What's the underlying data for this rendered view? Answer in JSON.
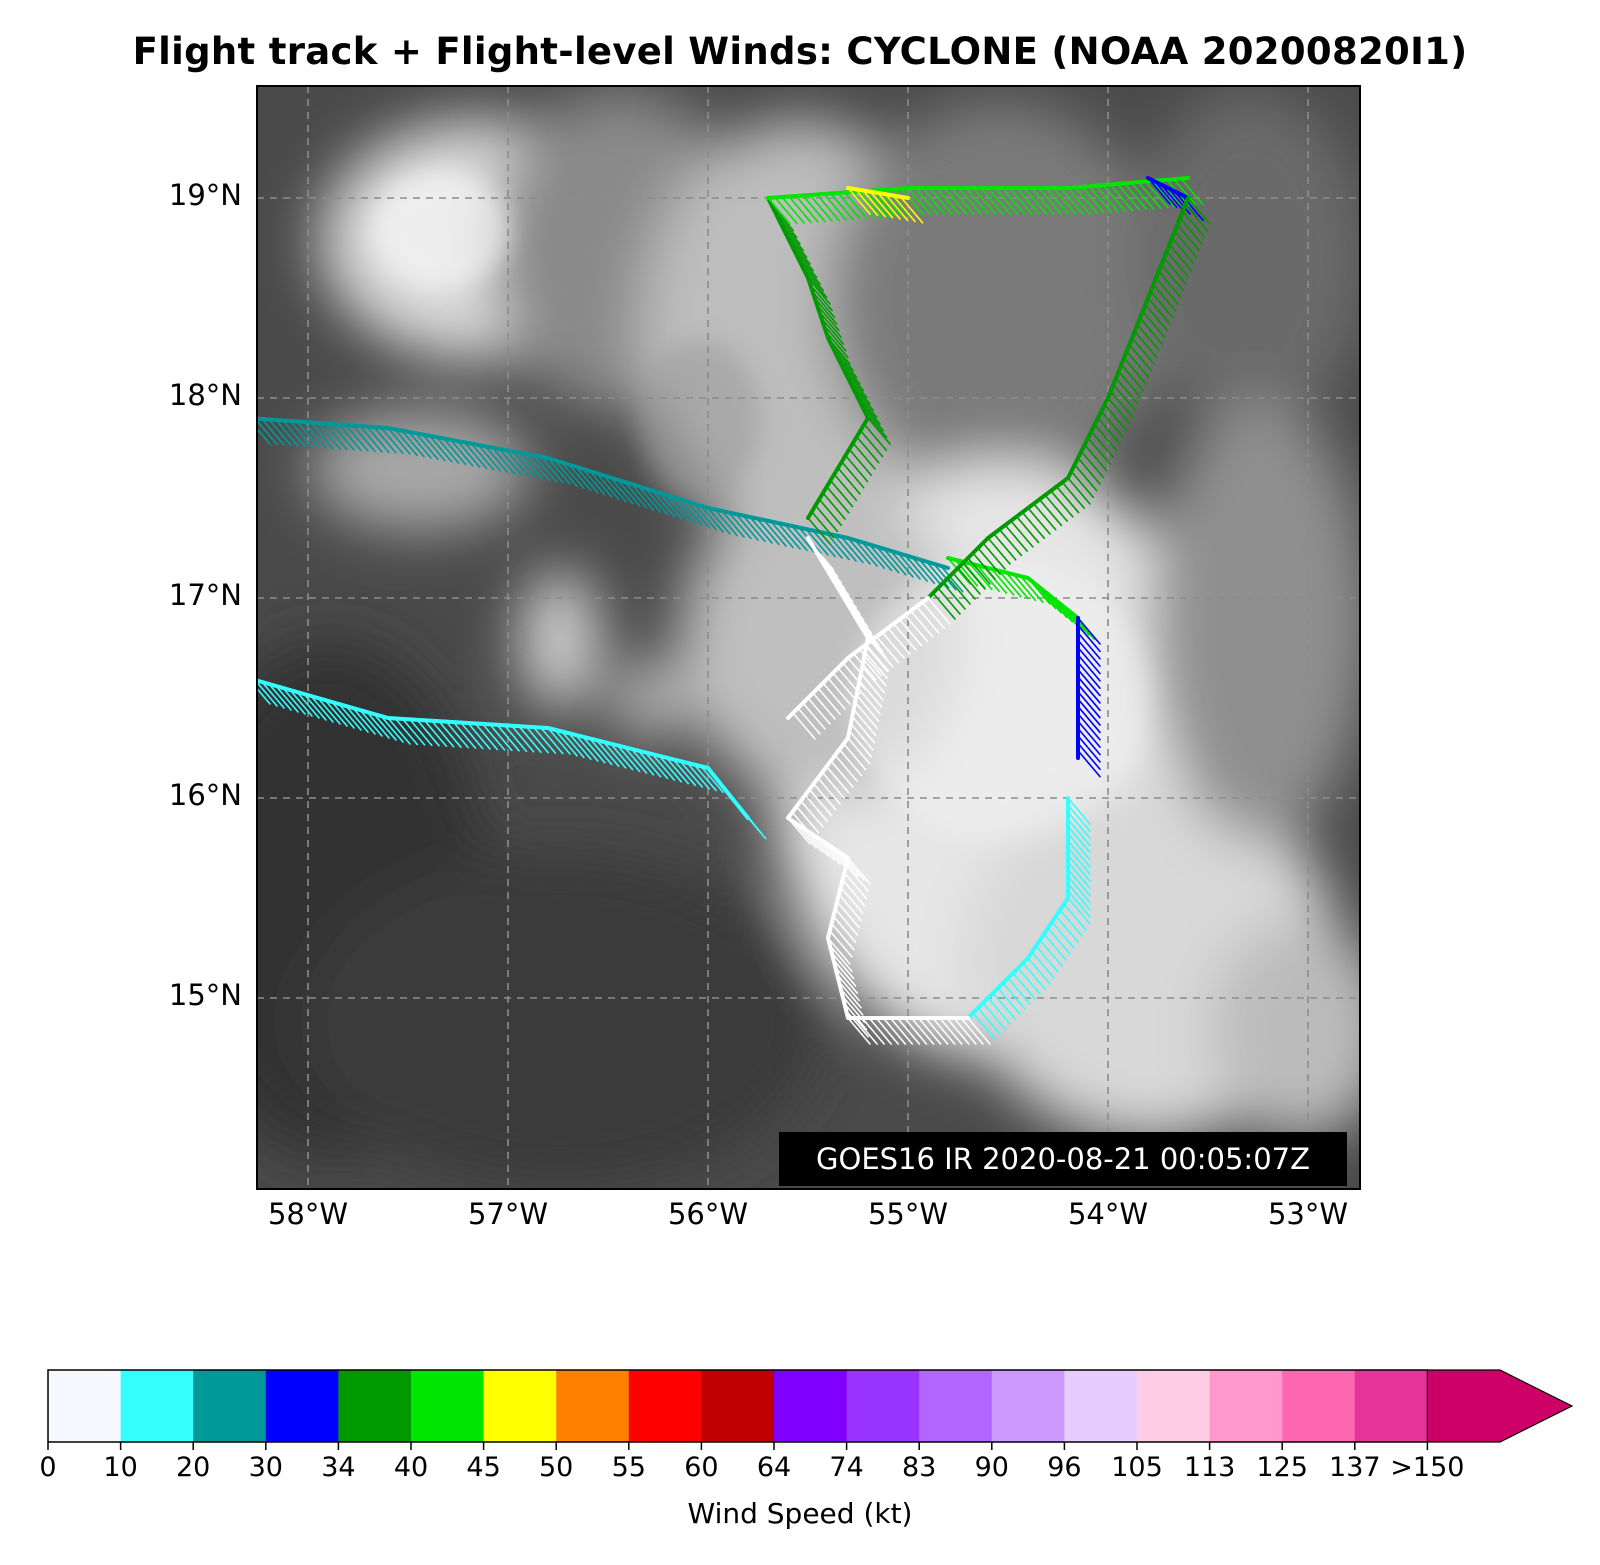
{
  "title": "Flight track + Flight-level Winds: CYCLONE (NOAA 20200820I1)",
  "map": {
    "lat_ticks": [
      "19°N",
      "18°N",
      "17°N",
      "16°N",
      "15°N"
    ],
    "lon_ticks": [
      "58°W",
      "57°W",
      "56°W",
      "55°W",
      "54°W",
      "53°W"
    ],
    "grid": true,
    "background": "GOES16 IR satellite imagery (grayscale cloud field)",
    "timestamp_label": "GOES16 IR 2020-08-21 00:05:07Z"
  },
  "colorbar": {
    "label": "Wind Speed (kt)",
    "ticks": [
      "0",
      "10",
      "20",
      "30",
      "34",
      "40",
      "45",
      "50",
      "55",
      "60",
      "64",
      "74",
      "83",
      "90",
      "96",
      "105",
      "113",
      "125",
      "137",
      ">150"
    ],
    "colors": [
      "#f7f8fd",
      "#33ffff",
      "#009999",
      "#0000ff",
      "#009900",
      "#00e600",
      "#ffff00",
      "#ff8000",
      "#ff0000",
      "#c00000",
      "#8000ff",
      "#9933ff",
      "#b266ff",
      "#cc99ff",
      "#e6ccff",
      "#ffcce6",
      "#ff99cc",
      "#ff66b2",
      "#e63399",
      "#cc0066"
    ]
  },
  "flight_track_segments": [
    {
      "color": "#009999",
      "path": [
        [
          -58.3,
          17.9
        ],
        [
          -57.6,
          17.85
        ],
        [
          -56.8,
          17.7
        ],
        [
          -56.0,
          17.45
        ],
        [
          -55.3,
          17.3
        ],
        [
          -54.8,
          17.15
        ]
      ]
    },
    {
      "color": "#33ffff",
      "path": [
        [
          -58.3,
          16.6
        ],
        [
          -57.6,
          16.4
        ],
        [
          -56.8,
          16.35
        ],
        [
          -56.0,
          16.15
        ],
        [
          -55.8,
          15.9
        ]
      ]
    },
    {
      "color": "#00e600",
      "path": [
        [
          -54.8,
          17.2
        ],
        [
          -54.4,
          17.1
        ],
        [
          -54.15,
          16.9
        ]
      ]
    },
    {
      "color": "#0000ff",
      "path": [
        [
          -54.15,
          16.9
        ],
        [
          -54.15,
          16.2
        ]
      ]
    },
    {
      "color": "#33ffff",
      "path": [
        [
          -54.2,
          16.0
        ],
        [
          -54.2,
          15.5
        ],
        [
          -54.4,
          15.2
        ],
        [
          -54.7,
          14.9
        ]
      ]
    },
    {
      "color": "#ffffff",
      "path": [
        [
          -54.7,
          14.9
        ],
        [
          -55.3,
          14.9
        ],
        [
          -55.4,
          15.3
        ],
        [
          -55.3,
          15.7
        ],
        [
          -55.6,
          15.9
        ],
        [
          -55.3,
          16.3
        ],
        [
          -55.2,
          16.8
        ],
        [
          -55.5,
          17.3
        ]
      ]
    },
    {
      "color": "#009900",
      "path": [
        [
          -55.5,
          17.4
        ],
        [
          -55.2,
          17.9
        ],
        [
          -55.4,
          18.3
        ],
        [
          -55.5,
          18.6
        ],
        [
          -55.7,
          19.0
        ]
      ]
    },
    {
      "color": "#00e600",
      "path": [
        [
          -55.7,
          19.0
        ],
        [
          -55.0,
          19.05
        ],
        [
          -54.2,
          19.05
        ],
        [
          -53.6,
          19.1
        ]
      ]
    },
    {
      "color": "#ffff00",
      "path": [
        [
          -55.3,
          19.05
        ],
        [
          -55.0,
          19.0
        ]
      ]
    },
    {
      "color": "#0000ff",
      "path": [
        [
          -53.8,
          19.1
        ],
        [
          -53.6,
          19.0
        ]
      ]
    },
    {
      "color": "#009900",
      "path": [
        [
          -53.6,
          19.0
        ],
        [
          -53.8,
          18.5
        ],
        [
          -54.0,
          18.0
        ],
        [
          -54.2,
          17.6
        ],
        [
          -54.6,
          17.3
        ],
        [
          -54.9,
          17.0
        ]
      ]
    },
    {
      "color": "#ffffff",
      "path": [
        [
          -54.9,
          17.0
        ],
        [
          -55.3,
          16.7
        ],
        [
          -55.6,
          16.4
        ]
      ]
    }
  ]
}
